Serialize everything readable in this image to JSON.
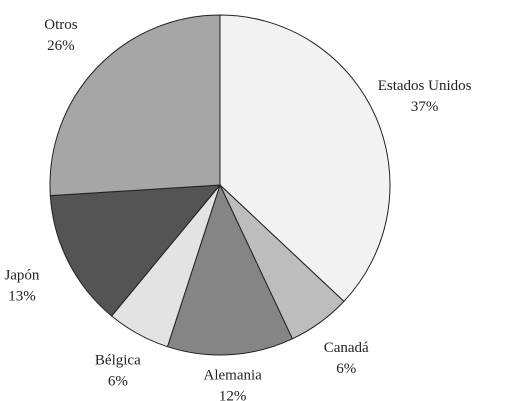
{
  "chart_data": {
    "type": "pie",
    "categories": [
      "Estados Unidos",
      "Canadá",
      "Alemania",
      "Bélgica",
      "Japón",
      "Otros"
    ],
    "values": [
      37,
      6,
      12,
      6,
      13,
      26
    ],
    "value_labels": [
      "37%",
      "6%",
      "12%",
      "6%",
      "13%",
      "26%"
    ],
    "colors": [
      "#f2f2f2",
      "#bdbdbd",
      "#858585",
      "#e3e3e3",
      "#545454",
      "#a6a6a6"
    ]
  }
}
